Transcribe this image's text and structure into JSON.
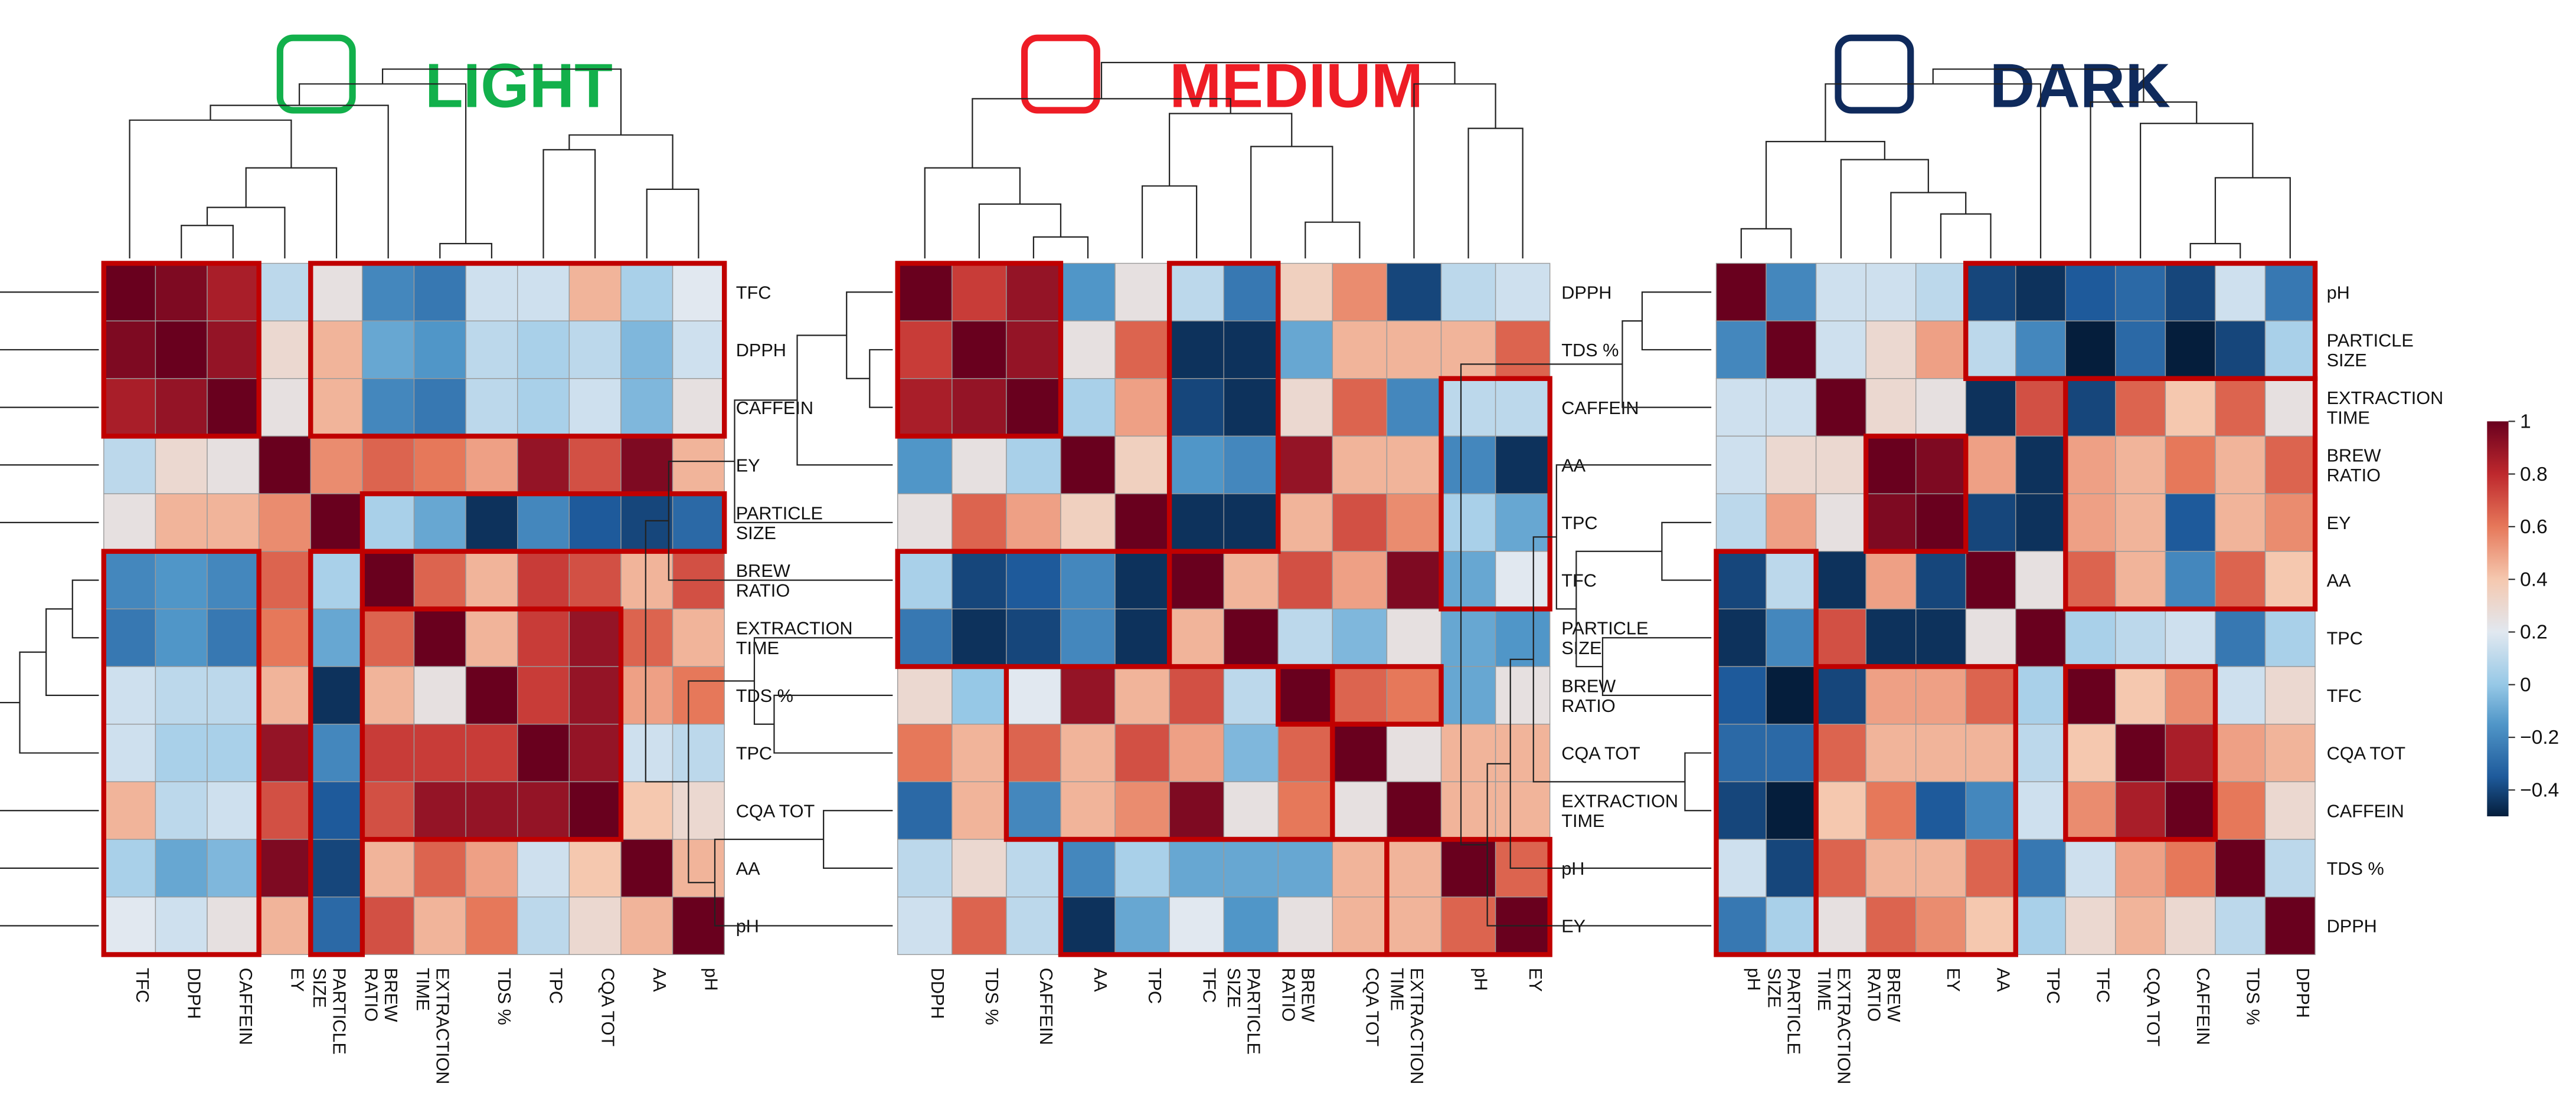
{
  "chart_data": [
    {
      "type": "heatmap",
      "title": "LIGHT",
      "title_color": "#12b04b",
      "x_labels": [
        "TFC",
        "DDPH",
        "CAFFEIN",
        "EY",
        "PARTICLE\nSIZE",
        "BREW\nRATIO",
        "EXTRACTION\nTIME",
        "TDS %",
        "TPC",
        "CQA TOT",
        "AA",
        "pH"
      ],
      "y_labels": [
        "TFC",
        "DPPH",
        "CAFFEIN",
        "EY",
        "PARTICLE\nSIZE",
        "BREW\nRATIO",
        "EXTRACTION\nTIME",
        "TDS %",
        "TPC",
        "CQA TOT",
        "AA",
        "pH"
      ],
      "values": [
        [
          1.0,
          0.95,
          0.85,
          0.1,
          0.25,
          -0.2,
          -0.25,
          0.15,
          0.15,
          0.45,
          0.05,
          0.2
        ],
        [
          0.95,
          1.0,
          0.9,
          0.3,
          0.45,
          -0.1,
          -0.15,
          0.1,
          0.05,
          0.1,
          -0.05,
          0.15
        ],
        [
          0.85,
          0.9,
          1.0,
          0.25,
          0.45,
          -0.2,
          -0.25,
          0.1,
          0.05,
          0.15,
          -0.05,
          0.25
        ],
        [
          0.1,
          0.3,
          0.25,
          1.0,
          0.55,
          0.65,
          0.6,
          0.5,
          0.9,
          0.7,
          0.95,
          0.45
        ],
        [
          0.25,
          0.45,
          0.45,
          0.55,
          1.0,
          0.05,
          -0.1,
          -0.45,
          -0.2,
          -0.35,
          -0.4,
          -0.3
        ],
        [
          -0.2,
          -0.15,
          -0.2,
          0.65,
          0.05,
          1.0,
          0.65,
          0.45,
          0.75,
          0.7,
          0.45,
          0.7
        ],
        [
          -0.25,
          -0.15,
          -0.25,
          0.6,
          -0.1,
          0.65,
          1.0,
          0.45,
          0.75,
          0.9,
          0.65,
          0.45
        ],
        [
          0.15,
          0.1,
          0.1,
          0.45,
          -0.45,
          0.45,
          0.25,
          1.0,
          0.75,
          0.9,
          0.5,
          0.6
        ],
        [
          0.15,
          0.05,
          0.05,
          0.9,
          -0.2,
          0.75,
          0.75,
          0.75,
          1.0,
          0.9,
          0.15,
          0.1
        ],
        [
          0.45,
          0.1,
          0.15,
          0.7,
          -0.35,
          0.7,
          0.9,
          0.9,
          0.9,
          1.0,
          0.4,
          0.3
        ],
        [
          0.05,
          -0.1,
          -0.05,
          0.95,
          -0.4,
          0.45,
          0.65,
          0.5,
          0.15,
          0.4,
          1.0,
          0.45
        ],
        [
          0.2,
          0.15,
          0.25,
          0.45,
          -0.3,
          0.7,
          0.45,
          0.6,
          0.1,
          0.3,
          0.45,
          1.0
        ]
      ]
    },
    {
      "type": "heatmap",
      "title": "MEDIUM",
      "title_color": "#ee1c25",
      "x_labels": [
        "DDPH",
        "TDS %",
        "CAFFEIN",
        "AA",
        "TPC",
        "TFC",
        "PARTICLE\nSIZE",
        "BREW\nRATIO",
        "CQA TOT",
        "EXTRACTION\nTIME",
        "pH",
        "EY"
      ],
      "y_labels": [
        "DPPH",
        "TDS %",
        "CAFFEIN",
        "AA",
        "TPC",
        "TFC",
        "PARTICLE\nSIZE",
        "BREW\nRATIO",
        "CQA TOT",
        "EXTRACTION\nTIME",
        "pH",
        "EY"
      ],
      "values": [
        [
          1.0,
          0.75,
          0.9,
          -0.15,
          0.25,
          0.1,
          -0.25,
          0.35,
          0.55,
          -0.4,
          0.1,
          0.15
        ],
        [
          0.75,
          1.0,
          0.9,
          0.25,
          0.65,
          -0.45,
          -0.45,
          -0.1,
          0.45,
          0.45,
          0.45,
          0.65
        ],
        [
          0.85,
          0.9,
          1.0,
          0.05,
          0.5,
          -0.4,
          -0.45,
          0.3,
          0.65,
          -0.2,
          0.1,
          0.1
        ],
        [
          -0.15,
          0.25,
          0.05,
          1.0,
          0.35,
          -0.15,
          -0.2,
          0.9,
          0.45,
          0.45,
          -0.2,
          -0.45
        ],
        [
          0.25,
          0.65,
          0.5,
          0.35,
          1.0,
          -0.45,
          -0.45,
          0.45,
          0.7,
          0.55,
          0.05,
          -0.1
        ],
        [
          0.05,
          -0.4,
          -0.35,
          -0.2,
          -0.45,
          1.0,
          0.45,
          0.7,
          0.5,
          0.95,
          -0.1,
          0.2
        ],
        [
          -0.25,
          -0.45,
          -0.4,
          -0.2,
          -0.45,
          0.45,
          1.0,
          0.1,
          -0.05,
          0.25,
          -0.1,
          -0.15
        ],
        [
          0.3,
          0.0,
          0.2,
          0.9,
          0.45,
          0.7,
          0.1,
          1.0,
          0.65,
          0.6,
          -0.1,
          0.25
        ],
        [
          0.6,
          0.45,
          0.65,
          0.45,
          0.7,
          0.5,
          -0.05,
          0.65,
          1.0,
          0.25,
          0.45,
          0.45
        ],
        [
          -0.3,
          0.45,
          -0.2,
          0.45,
          0.55,
          0.95,
          0.25,
          0.6,
          0.25,
          1.0,
          0.45,
          0.45
        ],
        [
          0.1,
          0.3,
          0.1,
          -0.2,
          0.05,
          -0.1,
          -0.1,
          -0.1,
          0.45,
          0.45,
          1.0,
          0.65
        ],
        [
          0.15,
          0.65,
          0.1,
          -0.45,
          -0.1,
          0.2,
          -0.15,
          0.25,
          0.45,
          0.45,
          0.65,
          1.0
        ]
      ]
    },
    {
      "type": "heatmap",
      "title": "DARK",
      "title_color": "#0f2a5c",
      "x_labels": [
        "pH",
        "PARTICLE\nSIZE",
        "EXTRACTION\nTIME",
        "BREW\nRATIO",
        "EY",
        "AA",
        "TPC",
        "TFC",
        "CQA TOT",
        "CAFFEIN",
        "TDS %",
        "DPPH"
      ],
      "y_labels": [
        "pH",
        "PARTICLE\nSIZE",
        "EXTRACTION\nTIME",
        "BREW\nRATIO",
        "EY",
        "AA",
        "TPC",
        "TFC",
        "CQA TOT",
        "CAFFEIN",
        "TDS %",
        "DPPH"
      ],
      "values": [
        [
          1.0,
          -0.2,
          0.15,
          0.15,
          0.1,
          -0.4,
          -0.45,
          -0.35,
          -0.3,
          -0.4,
          0.15,
          -0.25
        ],
        [
          -0.2,
          1.0,
          0.15,
          0.3,
          0.5,
          0.1,
          -0.2,
          -0.5,
          -0.3,
          -0.5,
          -0.4,
          0.05
        ],
        [
          0.15,
          0.15,
          1.0,
          0.3,
          0.25,
          -0.45,
          0.7,
          -0.4,
          0.65,
          0.4,
          0.65,
          0.25
        ],
        [
          0.15,
          0.3,
          0.3,
          1.0,
          0.95,
          0.5,
          -0.45,
          0.5,
          0.45,
          0.6,
          0.45,
          0.65
        ],
        [
          0.1,
          0.5,
          0.25,
          0.95,
          1.0,
          -0.4,
          -0.45,
          0.5,
          0.45,
          -0.35,
          0.45,
          0.55
        ],
        [
          -0.4,
          0.1,
          -0.45,
          0.5,
          -0.4,
          1.0,
          0.25,
          0.65,
          0.45,
          -0.2,
          0.65,
          0.4
        ],
        [
          -0.45,
          -0.2,
          0.7,
          -0.45,
          -0.45,
          0.25,
          1.0,
          0.05,
          0.1,
          0.15,
          -0.25,
          0.05
        ],
        [
          -0.35,
          -0.5,
          -0.4,
          0.5,
          0.5,
          0.65,
          0.05,
          1.0,
          0.4,
          0.55,
          0.15,
          0.3
        ],
        [
          -0.3,
          -0.3,
          0.65,
          0.45,
          0.45,
          0.45,
          0.1,
          0.4,
          1.0,
          0.85,
          0.5,
          0.45
        ],
        [
          -0.4,
          -0.5,
          0.4,
          0.6,
          -0.35,
          -0.2,
          0.15,
          0.55,
          0.85,
          1.0,
          0.6,
          0.3
        ],
        [
          0.15,
          -0.4,
          0.65,
          0.45,
          0.45,
          0.65,
          -0.25,
          0.15,
          0.5,
          0.6,
          1.0,
          0.1
        ],
        [
          -0.25,
          0.05,
          0.25,
          0.65,
          0.55,
          0.4,
          0.05,
          0.3,
          0.45,
          0.3,
          0.1,
          1.0
        ]
      ]
    }
  ],
  "colorbar": {
    "ticks": [
      "1",
      "0.8",
      "0.6",
      "0.4",
      "0.2",
      "0",
      "−0.2",
      "−0.4"
    ],
    "tick_values": [
      1,
      0.8,
      0.6,
      0.4,
      0.2,
      0,
      -0.2,
      -0.4
    ],
    "range": [
      -0.5,
      1.0
    ]
  }
}
